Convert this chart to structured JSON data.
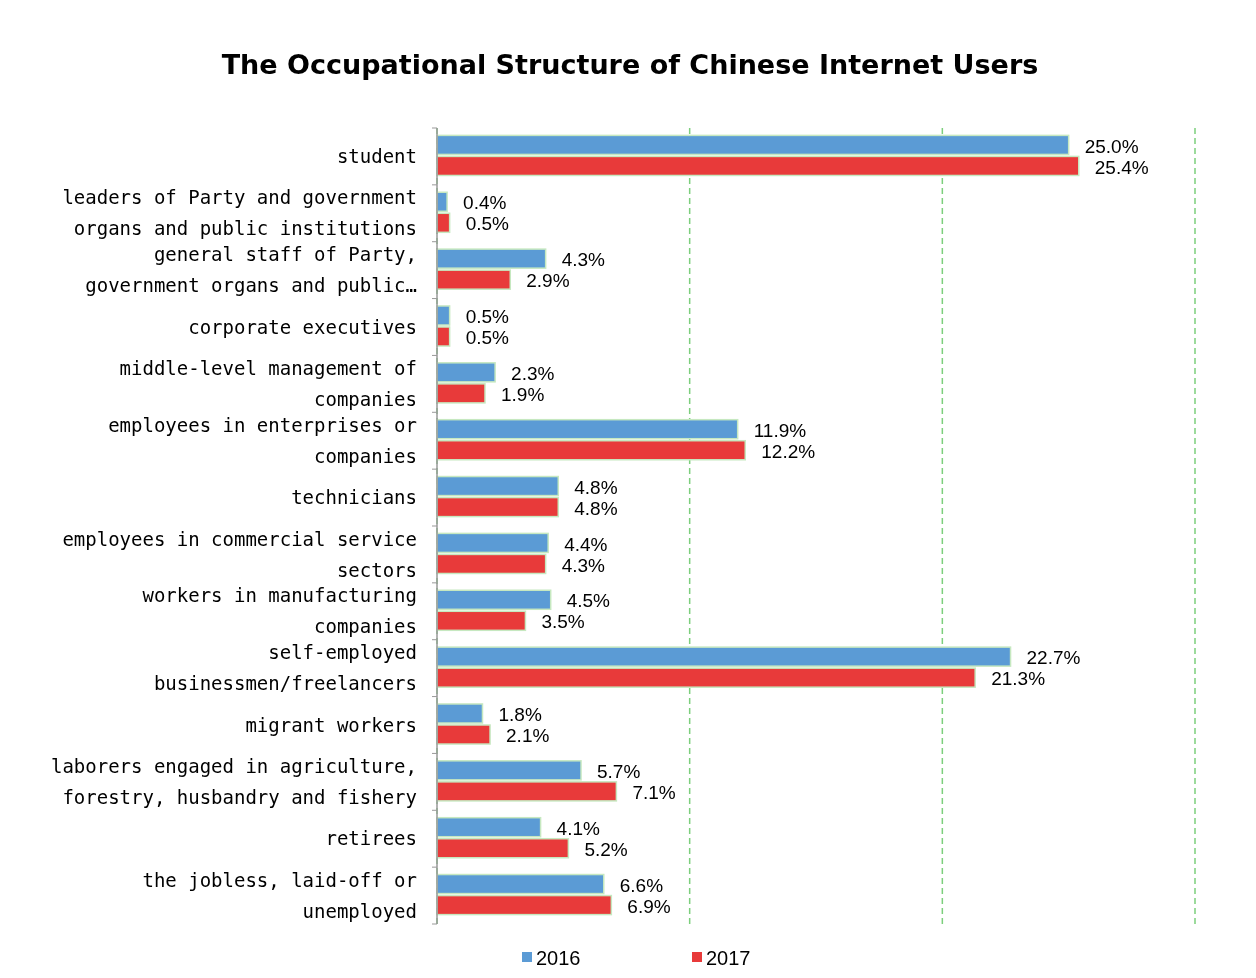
{
  "chart_data": {
    "type": "bar",
    "orientation": "horizontal",
    "title": "The Occupational Structure of Chinese Internet Users",
    "categories": [
      "student",
      "leaders of Party and government\norgans and public institutions",
      "general staff of Party,\ngovernment organs and public…",
      "corporate executives",
      "middle-level management of\ncompanies",
      "employees in enterprises or\ncompanies",
      "technicians",
      "employees in commercial service\nsectors",
      "workers in manufacturing\ncompanies",
      "self-employed\nbusinessmen/freelancers",
      "migrant workers",
      "laborers engaged in agriculture,\nforestry, husbandry and fishery",
      "retirees",
      "the jobless, laid-off or\nunemployed"
    ],
    "series": [
      {
        "name": "2016",
        "color": "#5b9bd5",
        "values": [
          25.0,
          0.4,
          4.3,
          0.5,
          2.3,
          11.9,
          4.8,
          4.4,
          4.5,
          22.7,
          1.8,
          5.7,
          4.1,
          6.6
        ],
        "value_labels": [
          "25.0%",
          "0.4%",
          "4.3%",
          "0.5%",
          "2.3%",
          "11.9%",
          "4.8%",
          "4.4%",
          "4.5%",
          "22.7%",
          "1.8%",
          "5.7%",
          "4.1%",
          "6.6%"
        ]
      },
      {
        "name": "2017",
        "color": "#e83a3a",
        "values": [
          25.4,
          0.5,
          2.9,
          0.5,
          1.9,
          12.2,
          4.8,
          4.3,
          3.5,
          21.3,
          2.1,
          7.1,
          5.2,
          6.9
        ],
        "value_labels": [
          "25.4%",
          "0.5%",
          "2.9%",
          "0.5%",
          "1.9%",
          "12.2%",
          "4.8%",
          "4.3%",
          "3.5%",
          "21.3%",
          "2.1%",
          "7.1%",
          "5.2%",
          "6.9%"
        ]
      }
    ],
    "xlim": [
      0,
      30
    ],
    "xticks": [
      {
        "value": 0,
        "label": null
      },
      {
        "value": 10,
        "label": null
      },
      {
        "value": 20,
        "label": null
      },
      {
        "value": 30,
        "label": null
      }
    ],
    "tick_labels": "y",
    "grid": "x",
    "legend": "bottom"
  }
}
